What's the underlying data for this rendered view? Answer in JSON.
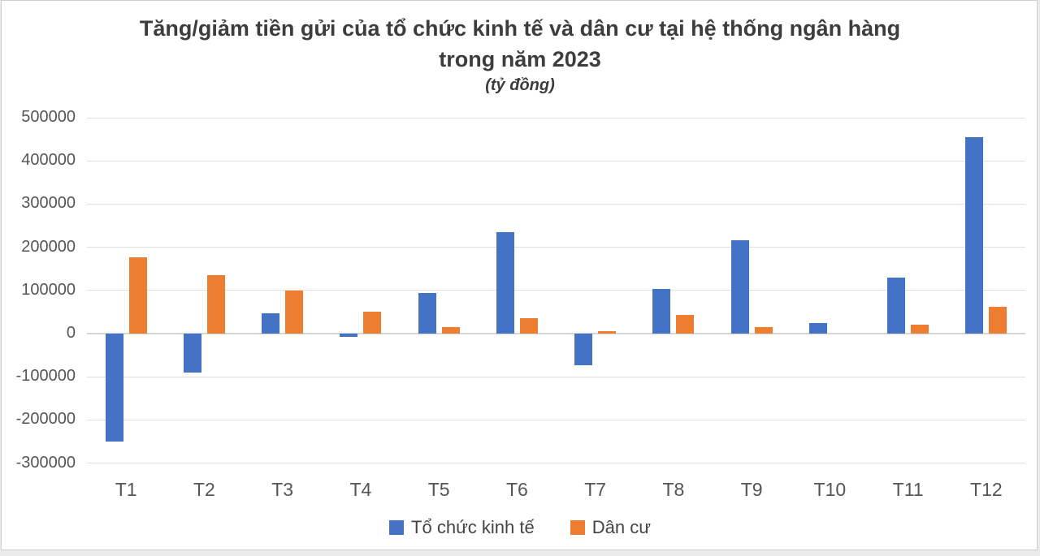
{
  "chart_data": {
    "type": "bar",
    "title": "Tăng/giảm tiền gửi của tổ chức kinh tế và dân cư tại hệ thống ngân hàng",
    "title_line2": "trong năm 2023",
    "subtitle": "(tỷ đồng)",
    "categories": [
      "T1",
      "T2",
      "T3",
      "T4",
      "T5",
      "T6",
      "T7",
      "T8",
      "T9",
      "T10",
      "T11",
      "T12"
    ],
    "series": [
      {
        "name": "Tổ chức kinh tế",
        "color": "#4472C4",
        "values": [
          -250000,
          -90000,
          47000,
          -8000,
          93000,
          234000,
          -74000,
          103000,
          216000,
          24000,
          129000,
          455000
        ]
      },
      {
        "name": "Dân cư",
        "color": "#ED7D31",
        "values": [
          176000,
          135000,
          100000,
          50000,
          14000,
          35000,
          6000,
          43000,
          14000,
          0,
          20000,
          62000
        ]
      }
    ],
    "ylim": [
      -300000,
      500000
    ],
    "ytick_step": 100000,
    "grid": true,
    "legend_position": "bottom"
  },
  "colors": {
    "background": "#eaeaea",
    "card_background": "#ffffff",
    "card_border": "#cfcfcf",
    "gridline": "#e0e0e0",
    "axis_text": "#555555",
    "title_text": "#3d3d3d",
    "series1": "#4472C4",
    "series2": "#ED7D31"
  }
}
